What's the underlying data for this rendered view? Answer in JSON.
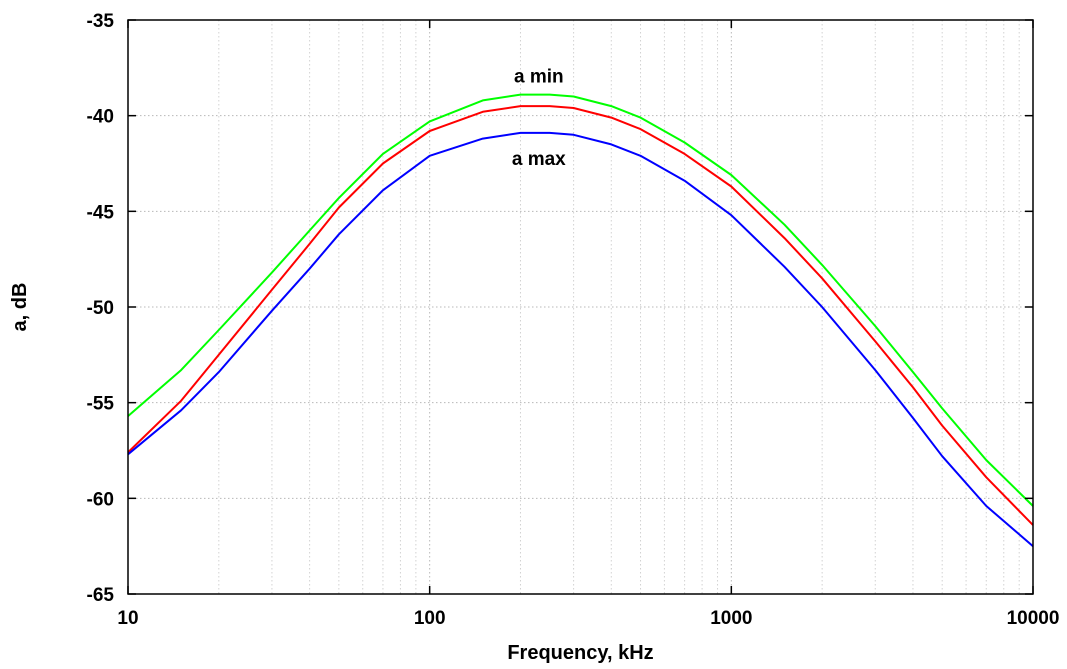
{
  "chart_data": {
    "type": "line",
    "title": "",
    "xlabel": "Frequency, kHz",
    "ylabel": "a, dB",
    "x_scale": "log",
    "xlim": [
      10,
      10000
    ],
    "ylim": [
      -65,
      -35
    ],
    "x_ticks": [
      10,
      100,
      1000,
      10000
    ],
    "x_tick_labels": [
      "10",
      "100",
      "1000",
      "10000"
    ],
    "y_ticks": [
      -35,
      -40,
      -45,
      -50,
      -55,
      -60,
      -65
    ],
    "y_tick_labels": [
      "-35",
      "-40",
      "-45",
      "-50",
      "-55",
      "-60",
      "-65"
    ],
    "grid": true,
    "legend": "none",
    "annotations": [
      {
        "text": "a min",
        "x": 230,
        "y": -37.9
      },
      {
        "text": "a max",
        "x": 230,
        "y": -42.2
      }
    ],
    "x": [
      10,
      15,
      20,
      30,
      40,
      50,
      70,
      100,
      150,
      200,
      250,
      300,
      400,
      500,
      700,
      1000,
      1500,
      2000,
      3000,
      4000,
      5000,
      7000,
      10000
    ],
    "series": [
      {
        "color": "#00ff00",
        "values": [
          -55.7,
          -53.3,
          -51.2,
          -48.2,
          -46.0,
          -44.3,
          -42.0,
          -40.3,
          -39.2,
          -38.9,
          -38.9,
          -39.0,
          -39.5,
          -40.1,
          -41.4,
          -43.1,
          -45.7,
          -47.8,
          -51.0,
          -53.4,
          -55.3,
          -58.0,
          -60.4
        ]
      },
      {
        "color": "#ff0000",
        "values": [
          -57.6,
          -54.9,
          -52.5,
          -49.1,
          -46.7,
          -44.8,
          -42.5,
          -40.8,
          -39.8,
          -39.5,
          -39.5,
          -39.6,
          -40.1,
          -40.7,
          -42.0,
          -43.7,
          -46.4,
          -48.5,
          -51.8,
          -54.2,
          -56.2,
          -58.9,
          -61.4
        ]
      },
      {
        "color": "#0000ff",
        "values": [
          -57.7,
          -55.4,
          -53.4,
          -50.2,
          -48.0,
          -46.2,
          -43.9,
          -42.1,
          -41.2,
          -40.9,
          -40.9,
          -41.0,
          -41.5,
          -42.1,
          -43.4,
          -45.2,
          -47.9,
          -50.0,
          -53.3,
          -55.8,
          -57.8,
          -60.4,
          -62.5
        ]
      }
    ]
  }
}
